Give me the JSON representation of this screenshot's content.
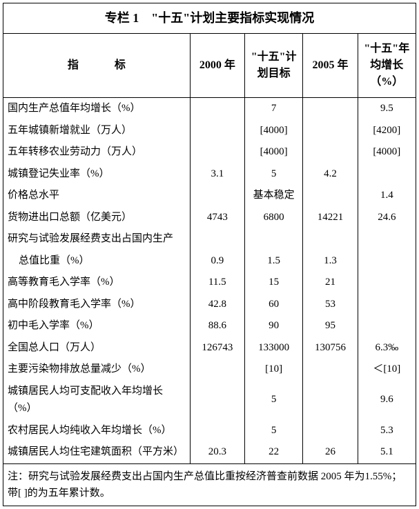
{
  "title": "专栏 1　\"十五\"计划主要指标实现情况",
  "columns": {
    "indicator": "指　标",
    "c1": "2000 年",
    "c2": "\"十五\"计划目标",
    "c3": "2005 年",
    "c4": "\"十五\"年均增长（%）"
  },
  "rows": [
    {
      "ind": "国内生产总值年均增长（%）",
      "c1": "",
      "c2": "7",
      "c3": "",
      "c4": "9.5"
    },
    {
      "ind": "五年城镇新增就业（万人）",
      "c1": "",
      "c2": "[4000]",
      "c3": "",
      "c4": "[4200]"
    },
    {
      "ind": "五年转移农业劳动力（万人）",
      "c1": "",
      "c2": "[4000]",
      "c3": "",
      "c4": "[4000]"
    },
    {
      "ind": "城镇登记失业率（%）",
      "c1": "3.1",
      "c2": "5",
      "c3": "4.2",
      "c4": ""
    },
    {
      "ind": "价格总水平",
      "c1": "",
      "c2": "基本稳定",
      "c3": "",
      "c4": "1.4"
    },
    {
      "ind": "货物进出口总额（亿美元）",
      "c1": "4743",
      "c2": "6800",
      "c3": "14221",
      "c4": "24.6"
    },
    {
      "ind": "研究与试验发展经费支出占国内生产",
      "c1": "",
      "c2": "",
      "c3": "",
      "c4": ""
    },
    {
      "ind": "总值比重（%）",
      "c1": "0.9",
      "c2": "1.5",
      "c3": "1.3",
      "c4": "",
      "indent": true
    },
    {
      "ind": "高等教育毛入学率（%）",
      "c1": "11.5",
      "c2": "15",
      "c3": "21",
      "c4": ""
    },
    {
      "ind": "高中阶段教育毛入学率（%）",
      "c1": "42.8",
      "c2": "60",
      "c3": "53",
      "c4": ""
    },
    {
      "ind": "初中毛入学率（%）",
      "c1": "88.6",
      "c2": "90",
      "c3": "95",
      "c4": ""
    },
    {
      "ind": "全国总人口（万人）",
      "c1": "126743",
      "c2": "133000",
      "c3": "130756",
      "c4": "6.3‰"
    },
    {
      "ind": "主要污染物排放总量减少（%）",
      "c1": "",
      "c2": "[10]",
      "c3": "",
      "c4": "＜[10]"
    },
    {
      "ind": "城镇居民人均可支配收入年均增长（%）",
      "c1": "",
      "c2": "5",
      "c3": "",
      "c4": "9.6"
    },
    {
      "ind": "农村居民人均纯收入年均增长（%）",
      "c1": "",
      "c2": "5",
      "c3": "",
      "c4": "5.3"
    },
    {
      "ind": "城镇居民人均住宅建筑面积（平方米）",
      "c1": "20.3",
      "c2": "22",
      "c3": "26",
      "c4": "5.1"
    }
  ],
  "note": "注：研究与试验发展经费支出占国内生产总值比重按经济普查前数据 2005 年为1.55%；带[ ]的为五年累计数。",
  "style": {
    "border_color": "#000000",
    "background": "#ffffff",
    "title_fontsize": 18,
    "header_fontsize": 16,
    "body_fontsize": 15,
    "font_family": "SimSun"
  }
}
